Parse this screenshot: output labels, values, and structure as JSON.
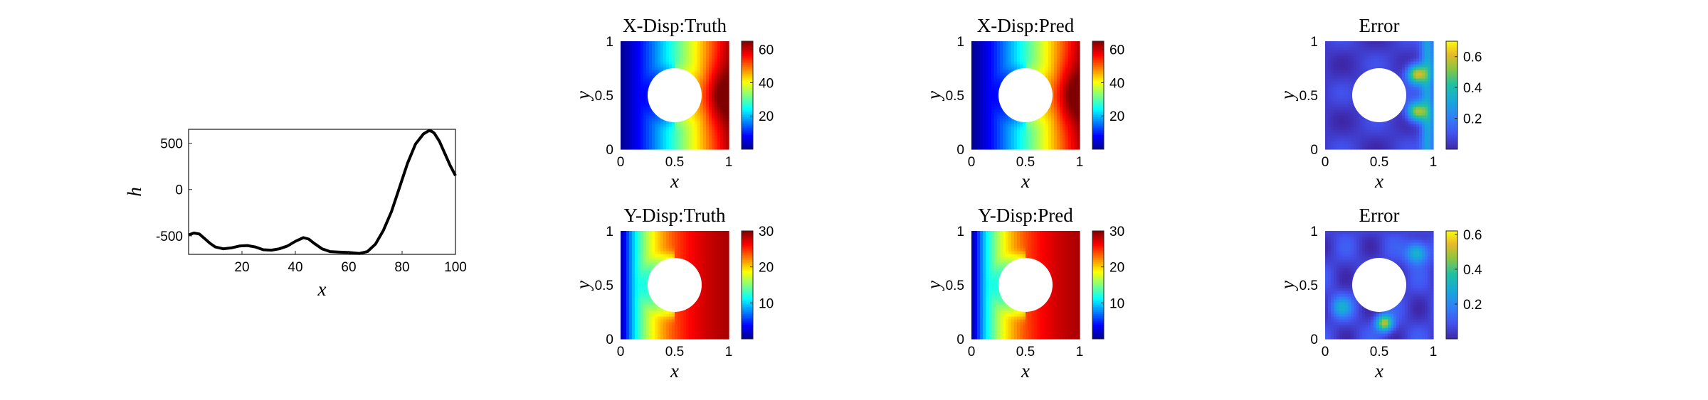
{
  "chart_data": [
    {
      "id": "h-curve",
      "type": "line",
      "title": "",
      "xlabel": "x",
      "ylabel": "h",
      "xlim": [
        0,
        100
      ],
      "ylim": [
        -700,
        650
      ],
      "xticks": [
        20,
        40,
        60,
        80,
        100
      ],
      "yticks": [
        -500,
        0,
        500
      ],
      "grid": false,
      "series": [
        {
          "color": "#000000",
          "x": [
            0,
            2,
            4,
            6,
            8,
            10,
            13,
            16,
            19,
            22,
            25,
            28,
            31,
            34,
            37,
            40,
            43,
            45,
            47,
            50,
            53,
            56,
            60,
            64,
            67,
            70,
            73,
            76,
            79,
            82,
            85,
            88,
            90,
            91,
            92,
            94,
            96,
            98,
            100
          ],
          "y": [
            -490,
            -470,
            -480,
            -530,
            -580,
            -620,
            -640,
            -630,
            -610,
            -605,
            -620,
            -650,
            -655,
            -640,
            -610,
            -560,
            -520,
            -535,
            -580,
            -640,
            -670,
            -675,
            -680,
            -690,
            -670,
            -590,
            -440,
            -240,
            20,
            280,
            490,
            600,
            635,
            630,
            610,
            520,
            390,
            260,
            150
          ]
        }
      ]
    },
    {
      "id": "xdisp-truth",
      "type": "heatmap",
      "title": "X-Disp:Truth",
      "xlabel": "x",
      "ylabel": "y",
      "xlim": [
        0,
        1
      ],
      "ylim": [
        0,
        1
      ],
      "xticks": [
        0,
        0.5,
        1
      ],
      "yticks": [
        0,
        0.5,
        1
      ],
      "hole": {
        "center": [
          0.5,
          0.5
        ],
        "radius": 0.25
      },
      "colormap": "jet",
      "clim": [
        0,
        65
      ],
      "colorbar_ticks": [
        20,
        40,
        60
      ]
    },
    {
      "id": "xdisp-pred",
      "type": "heatmap",
      "title": "X-Disp:Pred",
      "xlabel": "x",
      "ylabel": "y",
      "xlim": [
        0,
        1
      ],
      "ylim": [
        0,
        1
      ],
      "xticks": [
        0,
        0.5,
        1
      ],
      "yticks": [
        0,
        0.5,
        1
      ],
      "hole": {
        "center": [
          0.5,
          0.5
        ],
        "radius": 0.25
      },
      "colormap": "jet",
      "clim": [
        0,
        65
      ],
      "colorbar_ticks": [
        20,
        40,
        60
      ]
    },
    {
      "id": "xdisp-error",
      "type": "heatmap",
      "title": "Error",
      "xlabel": "x",
      "ylabel": "y",
      "xlim": [
        0,
        1
      ],
      "ylim": [
        0,
        1
      ],
      "xticks": [
        0,
        0.5,
        1
      ],
      "yticks": [
        0,
        0.5,
        1
      ],
      "hole": {
        "center": [
          0.5,
          0.5
        ],
        "radius": 0.25
      },
      "colormap": "parula",
      "clim": [
        0,
        0.7
      ],
      "colorbar_ticks": [
        0.2,
        0.4,
        0.6
      ]
    },
    {
      "id": "ydisp-truth",
      "type": "heatmap",
      "title": "Y-Disp:Truth",
      "xlabel": "x",
      "ylabel": "y",
      "xlim": [
        0,
        1
      ],
      "ylim": [
        0,
        1
      ],
      "xticks": [
        0,
        0.5,
        1
      ],
      "yticks": [
        0,
        0.5,
        1
      ],
      "hole": {
        "center": [
          0.5,
          0.5
        ],
        "radius": 0.25
      },
      "colormap": "jet",
      "clim": [
        0,
        30
      ],
      "colorbar_ticks": [
        10,
        20,
        30
      ]
    },
    {
      "id": "ydisp-pred",
      "type": "heatmap",
      "title": "Y-Disp:Pred",
      "xlabel": "x",
      "ylabel": "y",
      "xlim": [
        0,
        1
      ],
      "ylim": [
        0,
        1
      ],
      "xticks": [
        0,
        0.5,
        1
      ],
      "yticks": [
        0,
        0.5,
        1
      ],
      "hole": {
        "center": [
          0.5,
          0.5
        ],
        "radius": 0.25
      },
      "colormap": "jet",
      "clim": [
        0,
        30
      ],
      "colorbar_ticks": [
        10,
        20,
        30
      ]
    },
    {
      "id": "ydisp-error",
      "type": "heatmap",
      "title": "Error",
      "xlabel": "x",
      "ylabel": "y",
      "xlim": [
        0,
        1
      ],
      "ylim": [
        0,
        1
      ],
      "xticks": [
        0,
        0.5,
        1
      ],
      "yticks": [
        0,
        0.5,
        1
      ],
      "hole": {
        "center": [
          0.5,
          0.5
        ],
        "radius": 0.25
      },
      "colormap": "parula",
      "clim": [
        0,
        0.62
      ],
      "colorbar_ticks": [
        0.2,
        0.4,
        0.6
      ]
    }
  ]
}
